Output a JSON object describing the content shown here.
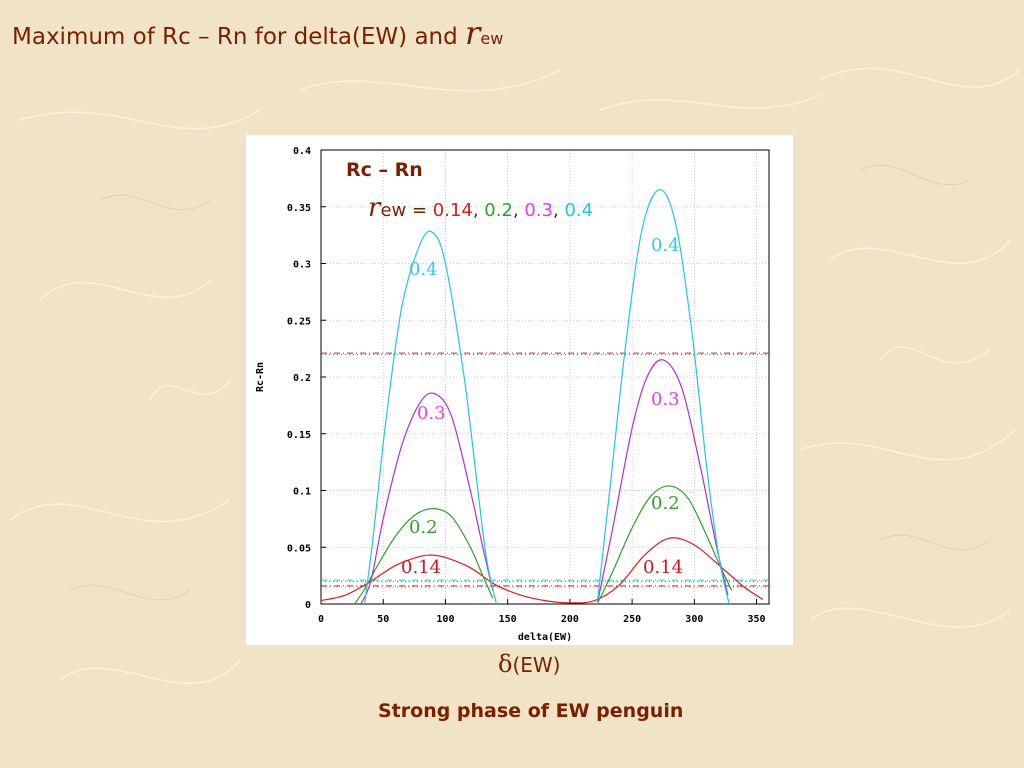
{
  "slide": {
    "title_main": "Maximum of Rc – Rn  for delta(EW) and ",
    "title_r": "r",
    "title_sub": "ew",
    "delta_symbol": "δ",
    "delta_rest": "(EW)",
    "caption": "Strong phase of EW penguin"
  },
  "chart_data": {
    "type": "line",
    "title": "",
    "xlabel": "delta(EW)",
    "ylabel": "Rc-Rn",
    "xlim": [
      0,
      360
    ],
    "ylim": [
      0,
      0.4
    ],
    "x_ticks": [
      "0",
      "50",
      "100",
      "150",
      "200",
      "250",
      "300",
      "350"
    ],
    "y_ticks": [
      "0",
      "0.05",
      "0.1",
      "0.15",
      "0.2",
      "0.25",
      "0.3",
      "0.35",
      "0.4"
    ],
    "grid": true,
    "annotation_title": "Rc – Rn",
    "annotation_rew": {
      "symbol": "r",
      "sub": "ew",
      "eq": " = ",
      "values": [
        "0.14",
        "0.2",
        "0.3",
        "0.4"
      ],
      "separator": ", "
    },
    "series": [
      {
        "name": "0.14",
        "color": "#e41a1c",
        "label_left": "0.14",
        "label_right": "0.14",
        "x": [
          0,
          20,
          40,
          60,
          80,
          90,
          100,
          120,
          140,
          160,
          180,
          200,
          220,
          240,
          260,
          280,
          300,
          320,
          340,
          355
        ],
        "y": [
          0.003,
          0.008,
          0.02,
          0.034,
          0.042,
          0.043,
          0.041,
          0.032,
          0.017,
          0.008,
          0.003,
          0.001,
          0.003,
          0.017,
          0.043,
          0.058,
          0.052,
          0.034,
          0.015,
          0.004
        ]
      },
      {
        "name": "0.2",
        "color": "#2ca02c",
        "label_left": "0.2",
        "label_right": "0.2",
        "x": [
          27,
          35,
          45,
          60,
          75,
          90,
          105,
          120,
          130,
          138,
          222,
          235,
          250,
          265,
          280,
          295,
          310,
          320,
          330
        ],
        "y": [
          0,
          0.013,
          0.033,
          0.06,
          0.078,
          0.084,
          0.077,
          0.05,
          0.025,
          0.005,
          0,
          0.03,
          0.067,
          0.095,
          0.104,
          0.093,
          0.06,
          0.035,
          0.012
        ]
      },
      {
        "name": "0.3",
        "color": "#b22cd8",
        "label_left": "0.3",
        "label_right": "0.3",
        "x": [
          32,
          40,
          50,
          65,
          80,
          92,
          105,
          120,
          130,
          138,
          222,
          235,
          250,
          262,
          275,
          290,
          305,
          318,
          327
        ],
        "y": [
          0,
          0.02,
          0.075,
          0.14,
          0.178,
          0.185,
          0.165,
          0.1,
          0.05,
          0.012,
          0,
          0.07,
          0.155,
          0.2,
          0.215,
          0.19,
          0.12,
          0.05,
          0.008
        ]
      },
      {
        "name": "0.4",
        "color": "#1ec8e0",
        "label_left": "0.4",
        "label_right": "0.4",
        "x": [
          35,
          42,
          52,
          65,
          80,
          90,
          100,
          115,
          125,
          133,
          141,
          222,
          232,
          245,
          258,
          272,
          285,
          298,
          310,
          320,
          328
        ],
        "y": [
          0,
          0.06,
          0.16,
          0.262,
          0.318,
          0.327,
          0.3,
          0.2,
          0.11,
          0.04,
          0,
          0,
          0.1,
          0.23,
          0.33,
          0.365,
          0.335,
          0.24,
          0.12,
          0.04,
          0
        ]
      }
    ],
    "reference_lines": [
      {
        "y": 0.221,
        "colors": [
          "#e41a1c",
          "#1f3fd0"
        ]
      },
      {
        "y": 0.021,
        "colors": [
          "#1ec8e0",
          "#1f3fd0"
        ]
      },
      {
        "y": 0.016,
        "colors": [
          "#e41a1c",
          "#2ca02c"
        ]
      }
    ]
  }
}
